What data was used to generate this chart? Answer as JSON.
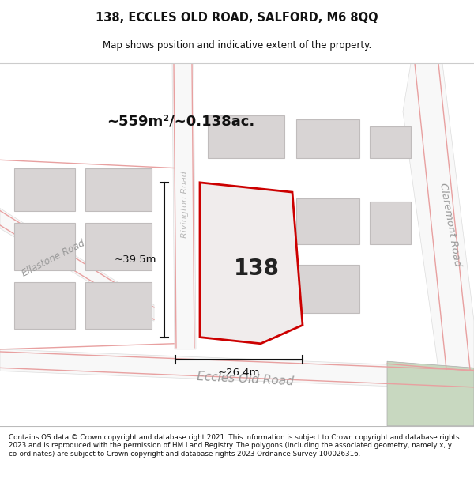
{
  "title": "138, ECCLES OLD ROAD, SALFORD, M6 8QQ",
  "subtitle": "Map shows position and indicative extent of the property.",
  "footer": "Contains OS data © Crown copyright and database right 2021. This information is subject to Crown copyright and database rights 2023 and is reproduced with the permission of HM Land Registry. The polygons (including the associated geometry, namely x, y co-ordinates) are subject to Crown copyright and database rights 2023 Ordnance Survey 100026316.",
  "area_text": "~559m²/~0.138ac.",
  "number_text": "138",
  "dim_width": "~26.4m",
  "dim_height": "~39.5m",
  "road_label_eccles": "Eccles Old Road",
  "road_label_claremont": "Claremont Road",
  "road_label_ellastone": "Ellastone Road",
  "road_label_rivington": "Rivington Road",
  "bg_color": "#ede9e9",
  "road_white": "#f8f8f8",
  "building_fill": "#d8d4d4",
  "building_edge": "#c0bcbc",
  "pink": "#e8a0a0",
  "green_fill": "#c8d8c0",
  "prop_fill": "#f0ecec",
  "prop_edge": "#cc0000",
  "black": "#111111",
  "gray_label": "#999999"
}
